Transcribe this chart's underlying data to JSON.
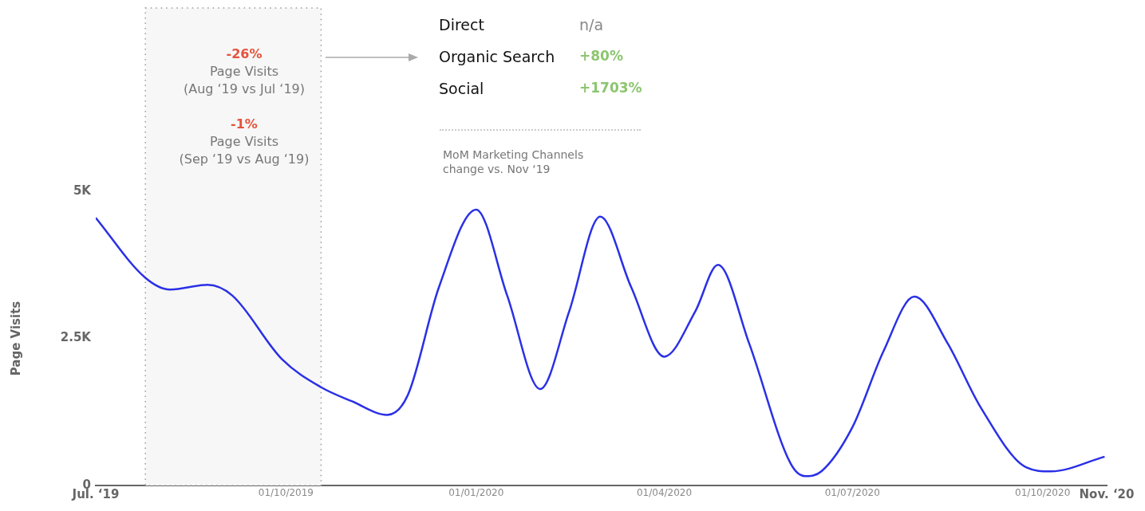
{
  "chart_data": {
    "type": "line",
    "ylabel": "Page Visits",
    "x": [
      "2019-07-01",
      "2019-07-25",
      "2019-08-06",
      "2019-08-24",
      "2019-09-05",
      "2019-09-29",
      "2019-10-18",
      "2019-11-02",
      "2019-11-19",
      "2019-11-29",
      "2019-12-14",
      "2020-01-01",
      "2020-01-16",
      "2020-02-01",
      "2020-02-15",
      "2020-03-01",
      "2020-03-16",
      "2020-04-01",
      "2020-04-16",
      "2020-04-27",
      "2020-05-12",
      "2020-06-01",
      "2020-06-08",
      "2020-06-16",
      "2020-07-01",
      "2020-07-16",
      "2020-07-31",
      "2020-08-16",
      "2020-09-01",
      "2020-09-23",
      "2020-10-05",
      "2020-10-31"
    ],
    "series": [
      {
        "color": "#2a30e6",
        "values": [
          4550,
          3530,
          3330,
          3410,
          3230,
          2150,
          1670,
          1430,
          1200,
          1540,
          3370,
          4690,
          3230,
          1640,
          2960,
          4570,
          3370,
          2190,
          2960,
          3750,
          2420,
          380,
          160,
          240,
          990,
          2280,
          3210,
          2420,
          1330,
          310,
          240,
          490
        ]
      }
    ],
    "xlim": [
      "2019-07-01",
      "2020-11-01"
    ],
    "xticks": [
      {
        "value": "2019-07-01",
        "label": "Jul. ‘19"
      },
      {
        "value": "2019-10-01",
        "label": "01/10/2019"
      },
      {
        "value": "2020-01-01",
        "label": "01/01/2020"
      },
      {
        "value": "2020-04-01",
        "label": "01/04/2020"
      },
      {
        "value": "2020-07-01",
        "label": "01/07/2020"
      },
      {
        "value": "2020-10-01",
        "label": "01/10/2020"
      },
      {
        "value": "2020-11-01",
        "label": "Nov. ‘20"
      }
    ],
    "ylim": [
      0,
      5000
    ],
    "yticks": [
      0,
      {
        "value": 2500,
        "label": "2.5K"
      },
      {
        "value": 5000,
        "label": "5K"
      }
    ],
    "bands": [
      {
        "axis": "x",
        "from": "2019-07-25",
        "to": "2019-10-18",
        "color": "#f7f7f7"
      }
    ],
    "marker": "none",
    "line_style": "solid",
    "annotations": [
      "-26%",
      "Page Visits",
      "(Aug ‘19 vs  Jul ‘19)",
      "-1%",
      "Page Visits",
      "(Sep ‘19 vs Aug ‘19)",
      "Direct",
      "n/a",
      "Organic Search",
      "+80%",
      "Social",
      "+1703%",
      "MoM Marketing Channels change vs. Nov ‘19"
    ]
  }
}
